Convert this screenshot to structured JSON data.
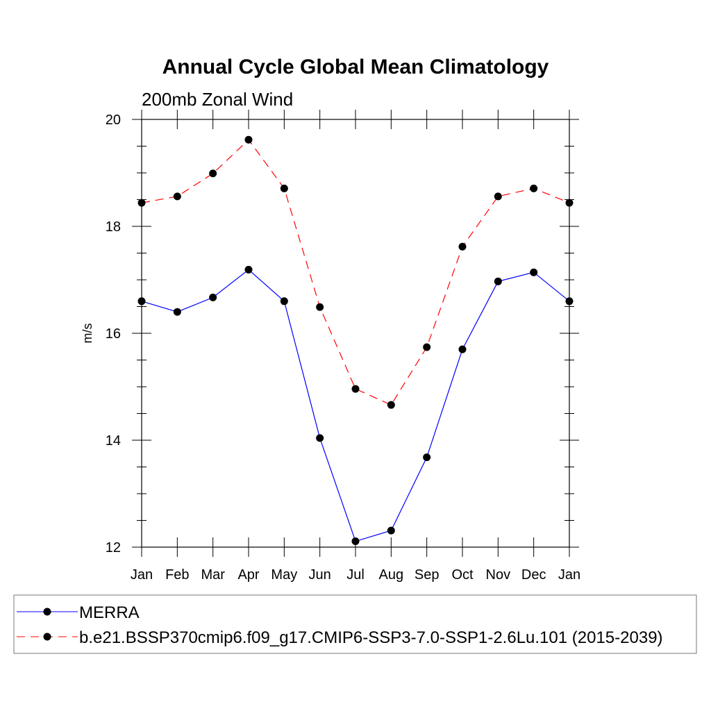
{
  "chart_data": {
    "type": "line",
    "title": "Annual Cycle Global Mean Climatology",
    "subtitle": "200mb Zonal Wind",
    "xlabel": "",
    "ylabel": "m/s",
    "categories": [
      "Jan",
      "Feb",
      "Mar",
      "Apr",
      "May",
      "Jun",
      "Jul",
      "Aug",
      "Sep",
      "Oct",
      "Nov",
      "Dec",
      "Jan"
    ],
    "ylim": [
      12,
      20
    ],
    "yticks": [
      12,
      14,
      16,
      18,
      20
    ],
    "series": [
      {
        "name": "MERRA",
        "color": "#0000ff",
        "style": "solid",
        "values": [
          16.6,
          16.4,
          16.67,
          17.19,
          16.6,
          14.04,
          12.11,
          12.31,
          13.68,
          15.7,
          16.97,
          17.14,
          16.6
        ]
      },
      {
        "name": "b.e21.BSSP370cmip6.f09_g17.CMIP6-SSP3-7.0-SSP1-2.6Lu.101 (2015-2039)",
        "color": "#ff0000",
        "style": "dashed",
        "values": [
          18.44,
          18.56,
          18.99,
          19.62,
          18.71,
          16.49,
          14.96,
          14.66,
          15.74,
          17.62,
          18.56,
          18.71,
          18.44
        ]
      }
    ],
    "legend_placement": "bottom",
    "grid": false
  }
}
